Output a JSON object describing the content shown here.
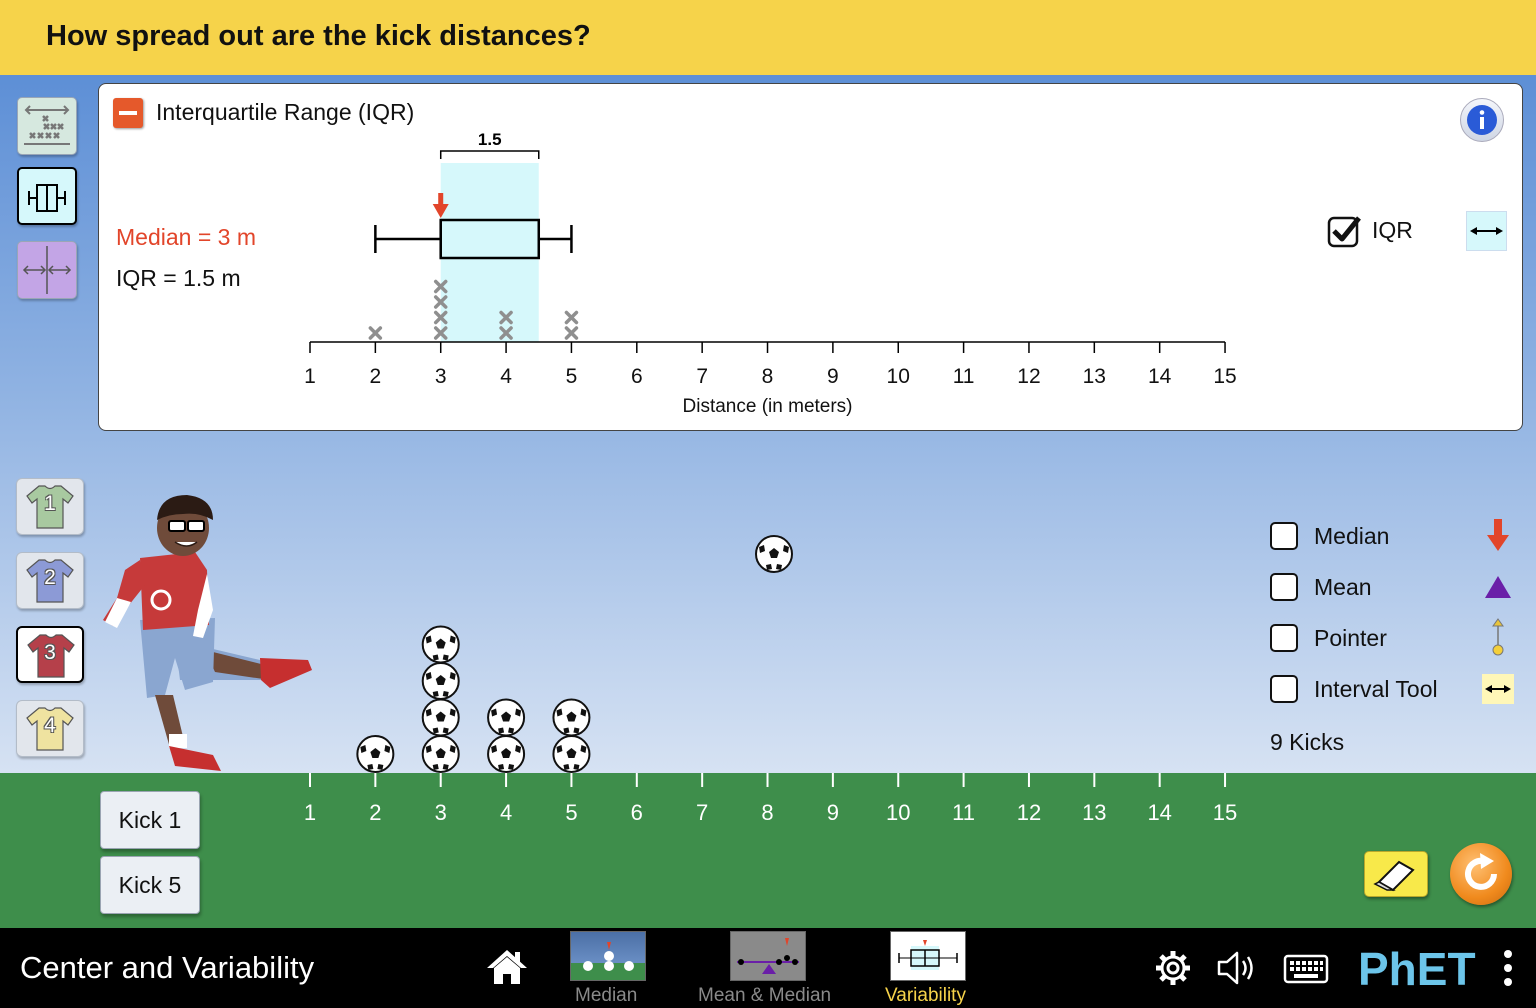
{
  "question": "How spread out are the kick distances?",
  "panel": {
    "title": "Interquartile Range (IQR)",
    "iqr_bracket_label": "1.5",
    "median_readout": "Median = 3 m",
    "iqr_readout": "IQR = 1.5 m",
    "iqr_checkbox_label": "IQR",
    "iqr_checked": true
  },
  "chart_data": {
    "type": "dot-plot with box plot",
    "xlabel": "Distance (in meters)",
    "xlim": [
      1,
      15
    ],
    "ticks": [
      1,
      2,
      3,
      4,
      5,
      6,
      7,
      8,
      9,
      10,
      11,
      12,
      13,
      14,
      15
    ],
    "dots": [
      {
        "x": 2,
        "count": 1
      },
      {
        "x": 3,
        "count": 4
      },
      {
        "x": 4,
        "count": 2
      },
      {
        "x": 5,
        "count": 2
      }
    ],
    "box_plot": {
      "min": 2,
      "q1": 3,
      "median": 3,
      "q3": 4.5,
      "max": 5
    },
    "median": 3,
    "iqr": 1.5
  },
  "field": {
    "ticks": [
      "1",
      "2",
      "3",
      "4",
      "5",
      "6",
      "7",
      "8",
      "9",
      "10",
      "11",
      "12",
      "13",
      "14",
      "15"
    ],
    "ball_stacks": [
      {
        "x": 2,
        "count": 1
      },
      {
        "x": 3,
        "count": 4
      },
      {
        "x": 4,
        "count": 2
      },
      {
        "x": 5,
        "count": 2
      }
    ],
    "ball_in_flight_x": 8
  },
  "kickers": [
    {
      "label": "1",
      "color": "#a8c9a0",
      "selected": false
    },
    {
      "label": "2",
      "color": "#8c9ad6",
      "selected": false
    },
    {
      "label": "3",
      "color": "#b5404a",
      "selected": true
    },
    {
      "label": "4",
      "color": "#efe3a0",
      "selected": false
    }
  ],
  "kick_buttons": [
    "Kick 1",
    "Kick 5"
  ],
  "options": {
    "median": "Median",
    "mean": "Mean",
    "pointer": "Pointer",
    "interval_tool": "Interval Tool",
    "kicks_count": "9 Kicks"
  },
  "nav": {
    "sim_title": "Center and Variability",
    "tabs": [
      {
        "label": "Median",
        "active": false
      },
      {
        "label": "Mean & Median",
        "active": false
      },
      {
        "label": "Variability",
        "active": true
      }
    ],
    "brand": "PhET"
  },
  "colors": {
    "header": "#f6d34a",
    "grass": "#3e8e4b",
    "median_red": "#e2452a",
    "mean_purple": "#6a1fa8",
    "iqr_fill": "#d6f8fb",
    "active_tab": "#f6d34a"
  },
  "icons": [
    "eraser-icon",
    "reset-icon",
    "home-icon",
    "settings-icon",
    "audio-icon",
    "keyboard-icon",
    "info-icon",
    "options-icon"
  ]
}
